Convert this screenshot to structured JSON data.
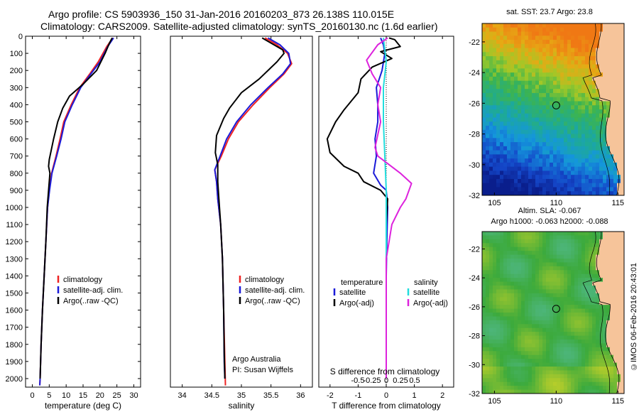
{
  "header": {
    "line1": "Argo profile: CS 5903936_150 31-Jan-2016 20160203_873 26.138S 110.015E",
    "line2": "Climatology: CARS2009. Satellite-adjusted climatology: synTS_20160130.nc (1.6d earlier)"
  },
  "credit": {
    "org": "Argo Australia",
    "pi": "PI: Susan Wijffels"
  },
  "stamp": "©IMOS 06-Feb-2016 20:43:01",
  "colors": {
    "climatology": "#ee2222",
    "satellite": "#1a1ad8",
    "argo": "#000000",
    "sat_salinity": "#22dddd",
    "argo_salinity_adj": "#dd22dd",
    "land": "#f6c49a"
  },
  "chart_data": [
    {
      "type": "line",
      "id": "temperature",
      "xlabel": "temperature (deg C)",
      "ylabel": "",
      "xlim": [
        -2,
        32
      ],
      "ylim": [
        2050,
        0
      ],
      "xticks": [
        0,
        5,
        10,
        15,
        20,
        25,
        30
      ],
      "yticks": [
        0,
        100,
        200,
        300,
        400,
        500,
        600,
        700,
        800,
        900,
        1000,
        1100,
        1200,
        1300,
        1400,
        1500,
        1600,
        1700,
        1800,
        1900,
        2000
      ],
      "legend": [
        "climatology",
        "satellite-adj. clim.",
        "Argo(..raw -QC)"
      ],
      "series": [
        {
          "name": "climatology",
          "color": "#ee2222",
          "points": [
            [
              23.8,
              10
            ],
            [
              22,
              60
            ],
            [
              19.5,
              150
            ],
            [
              17,
              220
            ],
            [
              14,
              300
            ],
            [
              11.5,
              400
            ],
            [
              9.3,
              500
            ],
            [
              8.2,
              600
            ],
            [
              7,
              700
            ],
            [
              5.7,
              800
            ],
            [
              5,
              900
            ],
            [
              4.5,
              1000
            ],
            [
              4,
              1200
            ],
            [
              3.5,
              1400
            ],
            [
              3,
              1600
            ],
            [
              2.6,
              1800
            ],
            [
              2.3,
              2000
            ],
            [
              2.2,
              2040
            ]
          ]
        },
        {
          "name": "satellite-adj. clim.",
          "color": "#1a1ad8",
          "points": [
            [
              24,
              10
            ],
            [
              22.3,
              60
            ],
            [
              20,
              150
            ],
            [
              17.3,
              220
            ],
            [
              14.3,
              300
            ],
            [
              11.8,
              400
            ],
            [
              9.6,
              500
            ],
            [
              8.5,
              600
            ],
            [
              7.2,
              700
            ],
            [
              5.8,
              800
            ],
            [
              5.1,
              900
            ],
            [
              4.5,
              1000
            ],
            [
              4,
              1200
            ],
            [
              3.5,
              1400
            ],
            [
              3,
              1600
            ],
            [
              2.6,
              1800
            ],
            [
              2.3,
              2000
            ],
            [
              2.2,
              2040
            ]
          ]
        },
        {
          "name": "Argo(..raw -QC)",
          "color": "#000000",
          "points": [
            [
              23.6,
              10
            ],
            [
              22.8,
              40
            ],
            [
              21.5,
              100
            ],
            [
              19,
              200
            ],
            [
              15,
              280
            ],
            [
              11,
              350
            ],
            [
              9,
              420
            ],
            [
              7.5,
              500
            ],
            [
              6.3,
              600
            ],
            [
              5,
              720
            ],
            [
              4.8,
              760
            ],
            [
              5.2,
              800
            ],
            [
              4.8,
              900
            ],
            [
              4.4,
              1000
            ],
            [
              4,
              1200
            ],
            [
              3.5,
              1400
            ],
            [
              3,
              1600
            ],
            [
              2.6,
              1800
            ],
            [
              2.3,
              2000
            ]
          ]
        }
      ]
    },
    {
      "type": "line",
      "id": "salinity",
      "xlabel": "salinity",
      "ylabel": "",
      "xlim": [
        33.8,
        36.2
      ],
      "ylim": [
        2050,
        0
      ],
      "xticks": [
        34,
        34.5,
        35,
        35.5,
        36
      ],
      "xtick_labels": [
        "34",
        "34.5",
        "35",
        "35.5",
        "36"
      ],
      "legend": [
        "climatology",
        "satellite-adj. clim.",
        "Argo(..raw -QC)"
      ],
      "series": [
        {
          "name": "climatology",
          "color": "#ee2222",
          "points": [
            [
              35.4,
              10
            ],
            [
              35.6,
              50
            ],
            [
              35.78,
              100
            ],
            [
              35.85,
              160
            ],
            [
              35.72,
              220
            ],
            [
              35.48,
              300
            ],
            [
              35.2,
              400
            ],
            [
              34.95,
              500
            ],
            [
              34.78,
              600
            ],
            [
              34.66,
              700
            ],
            [
              34.55,
              780
            ],
            [
              34.58,
              850
            ],
            [
              34.6,
              950
            ],
            [
              34.65,
              1100
            ],
            [
              34.68,
              1300
            ],
            [
              34.7,
              1600
            ],
            [
              34.72,
              1900
            ],
            [
              34.73,
              2040
            ]
          ]
        },
        {
          "name": "satellite-adj. clim.",
          "color": "#1a1ad8",
          "points": [
            [
              35.45,
              10
            ],
            [
              35.65,
              50
            ],
            [
              35.8,
              100
            ],
            [
              35.83,
              160
            ],
            [
              35.7,
              220
            ],
            [
              35.45,
              300
            ],
            [
              35.16,
              400
            ],
            [
              34.92,
              500
            ],
            [
              34.75,
              600
            ],
            [
              34.64,
              700
            ],
            [
              34.55,
              780
            ],
            [
              34.58,
              850
            ],
            [
              34.6,
              950
            ],
            [
              34.65,
              1100
            ],
            [
              34.68,
              1300
            ],
            [
              34.7,
              1600
            ],
            [
              34.71,
              1900
            ],
            [
              34.72,
              2000
            ]
          ]
        },
        {
          "name": "Argo(..raw -QC)",
          "color": "#000000",
          "points": [
            [
              35.35,
              10
            ],
            [
              35.5,
              40
            ],
            [
              35.7,
              80
            ],
            [
              35.72,
              100
            ],
            [
              35.6,
              150
            ],
            [
              35.3,
              250
            ],
            [
              35.0,
              330
            ],
            [
              34.8,
              420
            ],
            [
              34.7,
              480
            ],
            [
              34.58,
              580
            ],
            [
              34.56,
              680
            ],
            [
              34.6,
              750
            ],
            [
              34.6,
              850
            ],
            [
              34.62,
              950
            ],
            [
              34.65,
              1100
            ],
            [
              34.68,
              1300
            ],
            [
              34.7,
              1600
            ],
            [
              34.71,
              1850
            ],
            [
              34.72,
              2000
            ]
          ]
        }
      ]
    },
    {
      "type": "line",
      "id": "difference",
      "xlabel": "T difference from climatology",
      "xlabel_top": "S difference from climatology",
      "xlim": [
        -2.4,
        2.4
      ],
      "ylim": [
        2050,
        0
      ],
      "xticks": [
        -2,
        -1,
        0,
        1,
        2
      ],
      "top_ticks": [
        -0.5,
        -0.25,
        0,
        0.25,
        0.5
      ],
      "top_tick_labels": [
        "-0.5",
        "-0.25",
        "0",
        "0.25",
        "0.5"
      ],
      "legend_titles": [
        "temperature",
        "salinity"
      ],
      "legend": [
        "satellite",
        "Argo(-adj)",
        "satellite",
        "Argo(-adj)"
      ],
      "series": [
        {
          "name": "satellite",
          "color": "#1a1ad8",
          "points": [
            [
              -0.2,
              10
            ],
            [
              -0.1,
              50
            ],
            [
              -0.05,
              100
            ],
            [
              -0.15,
              200
            ],
            [
              -0.35,
              300
            ],
            [
              -0.3,
              400
            ],
            [
              -0.3,
              500
            ],
            [
              -0.4,
              600
            ],
            [
              -0.35,
              700
            ],
            [
              -0.45,
              800
            ],
            [
              -0.2,
              870
            ],
            [
              0,
              900
            ],
            [
              0.05,
              1000
            ],
            [
              0.02,
              1200
            ],
            [
              0,
              1400
            ],
            [
              0,
              2000
            ]
          ]
        },
        {
          "name": "Argo(-adj)",
          "color": "#000000",
          "points": [
            [
              0.1,
              10
            ],
            [
              0.3,
              20
            ],
            [
              0.5,
              60
            ],
            [
              -0.2,
              90
            ],
            [
              0.2,
              130
            ],
            [
              -0.5,
              180
            ],
            [
              -0.9,
              250
            ],
            [
              -1.0,
              330
            ],
            [
              -1.5,
              430
            ],
            [
              -1.8,
              500
            ],
            [
              -2.1,
              600
            ],
            [
              -2.0,
              680
            ],
            [
              -1.5,
              760
            ],
            [
              -1.0,
              800
            ],
            [
              -0.8,
              850
            ],
            [
              -0.2,
              900
            ],
            [
              0.05,
              950
            ],
            [
              0,
              1100
            ],
            [
              0,
              1300
            ],
            [
              0,
              1600
            ],
            [
              0,
              2000
            ]
          ]
        },
        {
          "name": "satellite",
          "color": "#22dddd",
          "points": [
            [
              -0.1,
              10
            ],
            [
              -0.05,
              80
            ],
            [
              0,
              150
            ],
            [
              -0.1,
              300
            ],
            [
              -0.1,
              500
            ],
            [
              -0.05,
              700
            ],
            [
              0,
              900
            ],
            [
              0,
              1100
            ],
            [
              0,
              1500
            ],
            [
              0,
              2000
            ]
          ]
        },
        {
          "name": "Argo(-adj)",
          "color": "#dd22dd",
          "points": [
            [
              0.05,
              10
            ],
            [
              -0.3,
              50
            ],
            [
              -0.7,
              140
            ],
            [
              -0.5,
              220
            ],
            [
              -0.2,
              300
            ],
            [
              -0.3,
              400
            ],
            [
              -0.2,
              500
            ],
            [
              -0.4,
              650
            ],
            [
              -0.3,
              700
            ],
            [
              0.5,
              800
            ],
            [
              0.9,
              860
            ],
            [
              0.7,
              950
            ],
            [
              0.5,
              1000
            ],
            [
              0.2,
              1100
            ],
            [
              0,
              1300
            ],
            [
              0,
              2000
            ]
          ]
        }
      ]
    },
    {
      "type": "heatmap",
      "id": "sst-map",
      "title": "sat. SST: 23.7  Argo: 23.8",
      "xlim": [
        104,
        115.5
      ],
      "ylim": [
        -32,
        -20.8
      ],
      "xticks": [
        105,
        110,
        115
      ],
      "yticks": [
        -22,
        -24,
        -26,
        -28,
        -30,
        -32
      ],
      "marker": {
        "lon": 110.0,
        "lat": -26.14
      }
    },
    {
      "type": "heatmap",
      "id": "sla-map",
      "title": "Altim. SLA: -0.067",
      "subtitle": "Argo h1000: -0.063 h2000: -0.088",
      "xlim": [
        104,
        115.5
      ],
      "ylim": [
        -32,
        -20.8
      ],
      "xticks": [
        105,
        110,
        115
      ],
      "yticks": [
        -22,
        -24,
        -26,
        -28,
        -30,
        -32
      ],
      "marker": {
        "lon": 110.0,
        "lat": -26.14
      }
    }
  ]
}
